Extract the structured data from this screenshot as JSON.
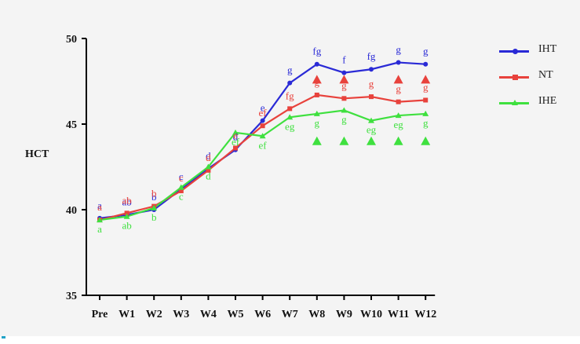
{
  "chart_data": {
    "type": "line",
    "ylabel": "HCT",
    "xlabel": "",
    "title": "",
    "categories": [
      "Pre",
      "W1",
      "W2",
      "W3",
      "W4",
      "W5",
      "W6",
      "W7",
      "W8",
      "W9",
      "W10",
      "W11",
      "W12"
    ],
    "ylim": [
      35,
      50
    ],
    "yticks": [
      35,
      40,
      45,
      50
    ],
    "grid": false,
    "legend_position": "top-right",
    "series": [
      {
        "name": "IHT",
        "color": "#2a2ad6",
        "marker": "circle",
        "values": [
          39.5,
          39.7,
          40.0,
          41.2,
          42.4,
          43.5,
          45.2,
          47.4,
          48.5,
          48.0,
          48.2,
          48.6,
          48.5
        ],
        "labels": [
          "a",
          "ab",
          "b",
          "c",
          "d",
          "d",
          "e",
          "g",
          "fg",
          "f",
          "fg",
          "g",
          "g"
        ]
      },
      {
        "name": "NT",
        "color": "#e8423c",
        "marker": "square",
        "values": [
          39.4,
          39.8,
          40.2,
          41.1,
          42.3,
          43.6,
          44.9,
          45.9,
          46.7,
          46.5,
          46.6,
          46.3,
          46.4
        ],
        "labels": [
          "a",
          "ab",
          "b",
          "c",
          "d",
          "e",
          "ef",
          "fg",
          "g",
          "g",
          "g",
          "g",
          "g"
        ]
      },
      {
        "name": "IHE",
        "color": "#3fe03f",
        "marker": "triangle",
        "values": [
          39.4,
          39.6,
          40.1,
          41.3,
          42.5,
          44.5,
          44.3,
          45.4,
          45.6,
          45.8,
          45.2,
          45.5,
          45.6
        ],
        "labels": [
          "a",
          "ab",
          "b",
          "c",
          "d",
          "ef",
          "ef",
          "eg",
          "g",
          "g",
          "eg",
          "eg",
          "g"
        ]
      }
    ],
    "red_triangle_markers_at": [
      "W8",
      "W9",
      "W11",
      "W12"
    ],
    "green_triangle_markers_at": [
      "W8",
      "W9",
      "W10",
      "W11",
      "W12"
    ]
  },
  "colors": {
    "figure_background": "#f4f4f4",
    "page_background": "#ffffff",
    "axis": "#000000",
    "bottom_accent": "#22a3c7"
  }
}
